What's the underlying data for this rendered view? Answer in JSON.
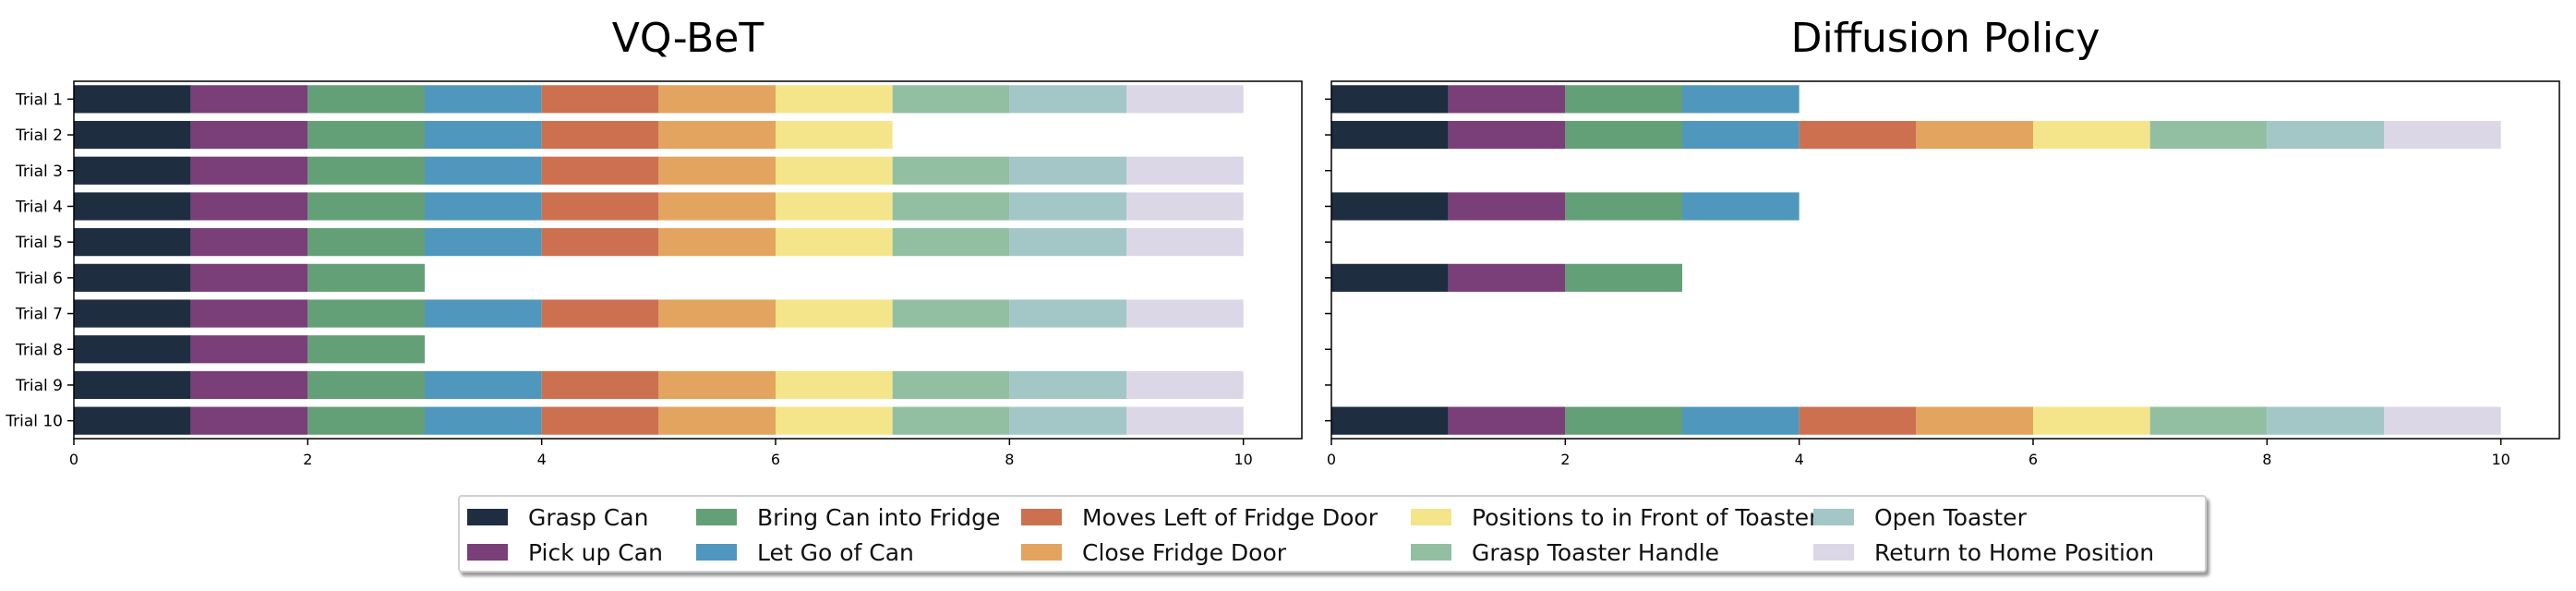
{
  "figure": {
    "phase_legend": [
      {
        "name": "Grasp Can",
        "color": "#1e2d40"
      },
      {
        "name": "Pick up Can",
        "color": "#7a3e79"
      },
      {
        "name": "Bring Can into Fridge",
        "color": "#63a078"
      },
      {
        "name": "Let Go of Can",
        "color": "#4f97bd"
      },
      {
        "name": "Moves Left of Fridge Door",
        "color": "#cd7050"
      },
      {
        "name": "Close Fridge Door",
        "color": "#e2a45e"
      },
      {
        "name": "Positions to in Front of Toaster",
        "color": "#f5e58a"
      },
      {
        "name": "Grasp Toaster Handle",
        "color": "#92bfa2"
      },
      {
        "name": "Open Toaster",
        "color": "#a2c7c6"
      },
      {
        "name": "Return to Home Position",
        "color": "#dbd7e6"
      }
    ]
  },
  "chart_data": [
    {
      "type": "bar",
      "orientation": "horizontal",
      "stacked": true,
      "title": "VQ-BeT",
      "categories": [
        "Trial 1",
        "Trial 2",
        "Trial 3",
        "Trial 4",
        "Trial 5",
        "Trial 6",
        "Trial 7",
        "Trial 8",
        "Trial 9",
        "Trial 10"
      ],
      "phases_completed": [
        10,
        7,
        10,
        10,
        10,
        3,
        10,
        3,
        10,
        10
      ],
      "xlim": [
        0,
        10.5
      ],
      "xticks": [
        0,
        2,
        4,
        6,
        8,
        10
      ],
      "grid": false,
      "legend": "below"
    },
    {
      "type": "bar",
      "orientation": "horizontal",
      "stacked": true,
      "title": "Diffusion Policy",
      "categories": [
        "Trial 1",
        "Trial 2",
        "Trial 3",
        "Trial 4",
        "Trial 5",
        "Trial 6",
        "Trial 7",
        "Trial 8",
        "Trial 9",
        "Trial 10"
      ],
      "phases_completed": [
        4,
        10,
        0,
        4,
        0,
        3,
        0,
        0,
        0,
        10
      ],
      "xlim": [
        0,
        10.5
      ],
      "xticks": [
        0,
        2,
        4,
        6,
        8,
        10
      ],
      "grid": false,
      "legend": "below"
    }
  ]
}
